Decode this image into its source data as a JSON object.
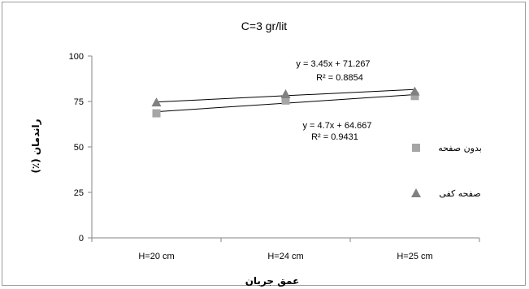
{
  "chart_data": {
    "type": "scatter",
    "title": "C=3 gr/lit",
    "xlabel": "عمق جریان",
    "ylabel": "راندمان (٪)",
    "categories": [
      "H=20 cm",
      "H=24 cm",
      "H=25 cm"
    ],
    "ylim": [
      0,
      100
    ],
    "yticks": [
      0,
      25,
      50,
      75,
      100
    ],
    "grid": false,
    "legend_position": "right",
    "series": [
      {
        "name": "بدون صفحه",
        "marker": "square",
        "color": "#a6a6a6",
        "values": [
          68.5,
          75.5,
          78
        ],
        "trendline": {
          "slope": 4.7,
          "intercept": 64.667,
          "equation": "y = 4.7x + 64.667",
          "r2": "R² = 0.9431"
        }
      },
      {
        "name": "صفحه کفی",
        "marker": "triangle",
        "color": "#808080",
        "values": [
          74.5,
          79,
          80.5
        ],
        "trendline": {
          "slope": 3.45,
          "intercept": 71.267,
          "equation": "y = 3.45x + 71.267",
          "r2": "R² = 0.8854"
        }
      }
    ]
  }
}
